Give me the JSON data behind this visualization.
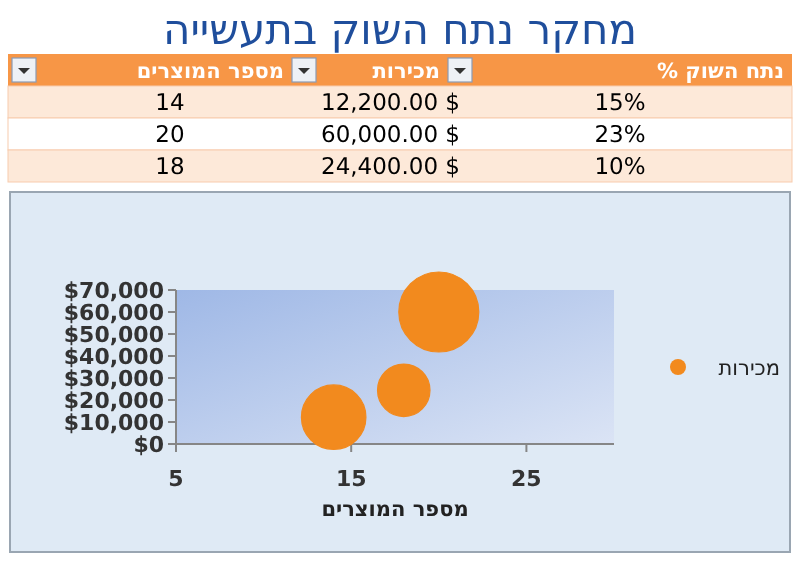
{
  "chart_data": {
    "type": "bubble",
    "title": "מחקר נתח השוק בתעשייה",
    "xlabel": "מספר המוצרים",
    "x": [
      14,
      20,
      18
    ],
    "series": [
      {
        "name": "מכירות",
        "color": "#f28a1e",
        "values": [
          12200,
          60000,
          24400
        ],
        "sizes": [
          0.65,
          1,
          0.43
        ]
      }
    ],
    "annotations": [
      "נתח השוק %",
      "14",
      "12,200.00 $",
      "15%",
      "20",
      "60,000.00 $",
      "23%",
      "18",
      "24,400.00 $",
      "10%"
    ],
    "xlim": [
      5,
      30
    ],
    "xticks": [
      5,
      15,
      25
    ],
    "ylim": [
      0,
      70000
    ],
    "yticks": [
      {
        "value": 0,
        "label": "$0"
      },
      {
        "value": 10000,
        "label": "$10,000"
      },
      {
        "value": 20000,
        "label": "$20,000"
      },
      {
        "value": 30000,
        "label": "$30,000"
      },
      {
        "value": 40000,
        "label": "$40,000"
      },
      {
        "value": 50000,
        "label": "$50,000"
      },
      {
        "value": 60000,
        "label": "$60,000"
      },
      {
        "value": 70000,
        "label": "$70,000"
      }
    ],
    "legend": "right",
    "grid": false
  }
}
